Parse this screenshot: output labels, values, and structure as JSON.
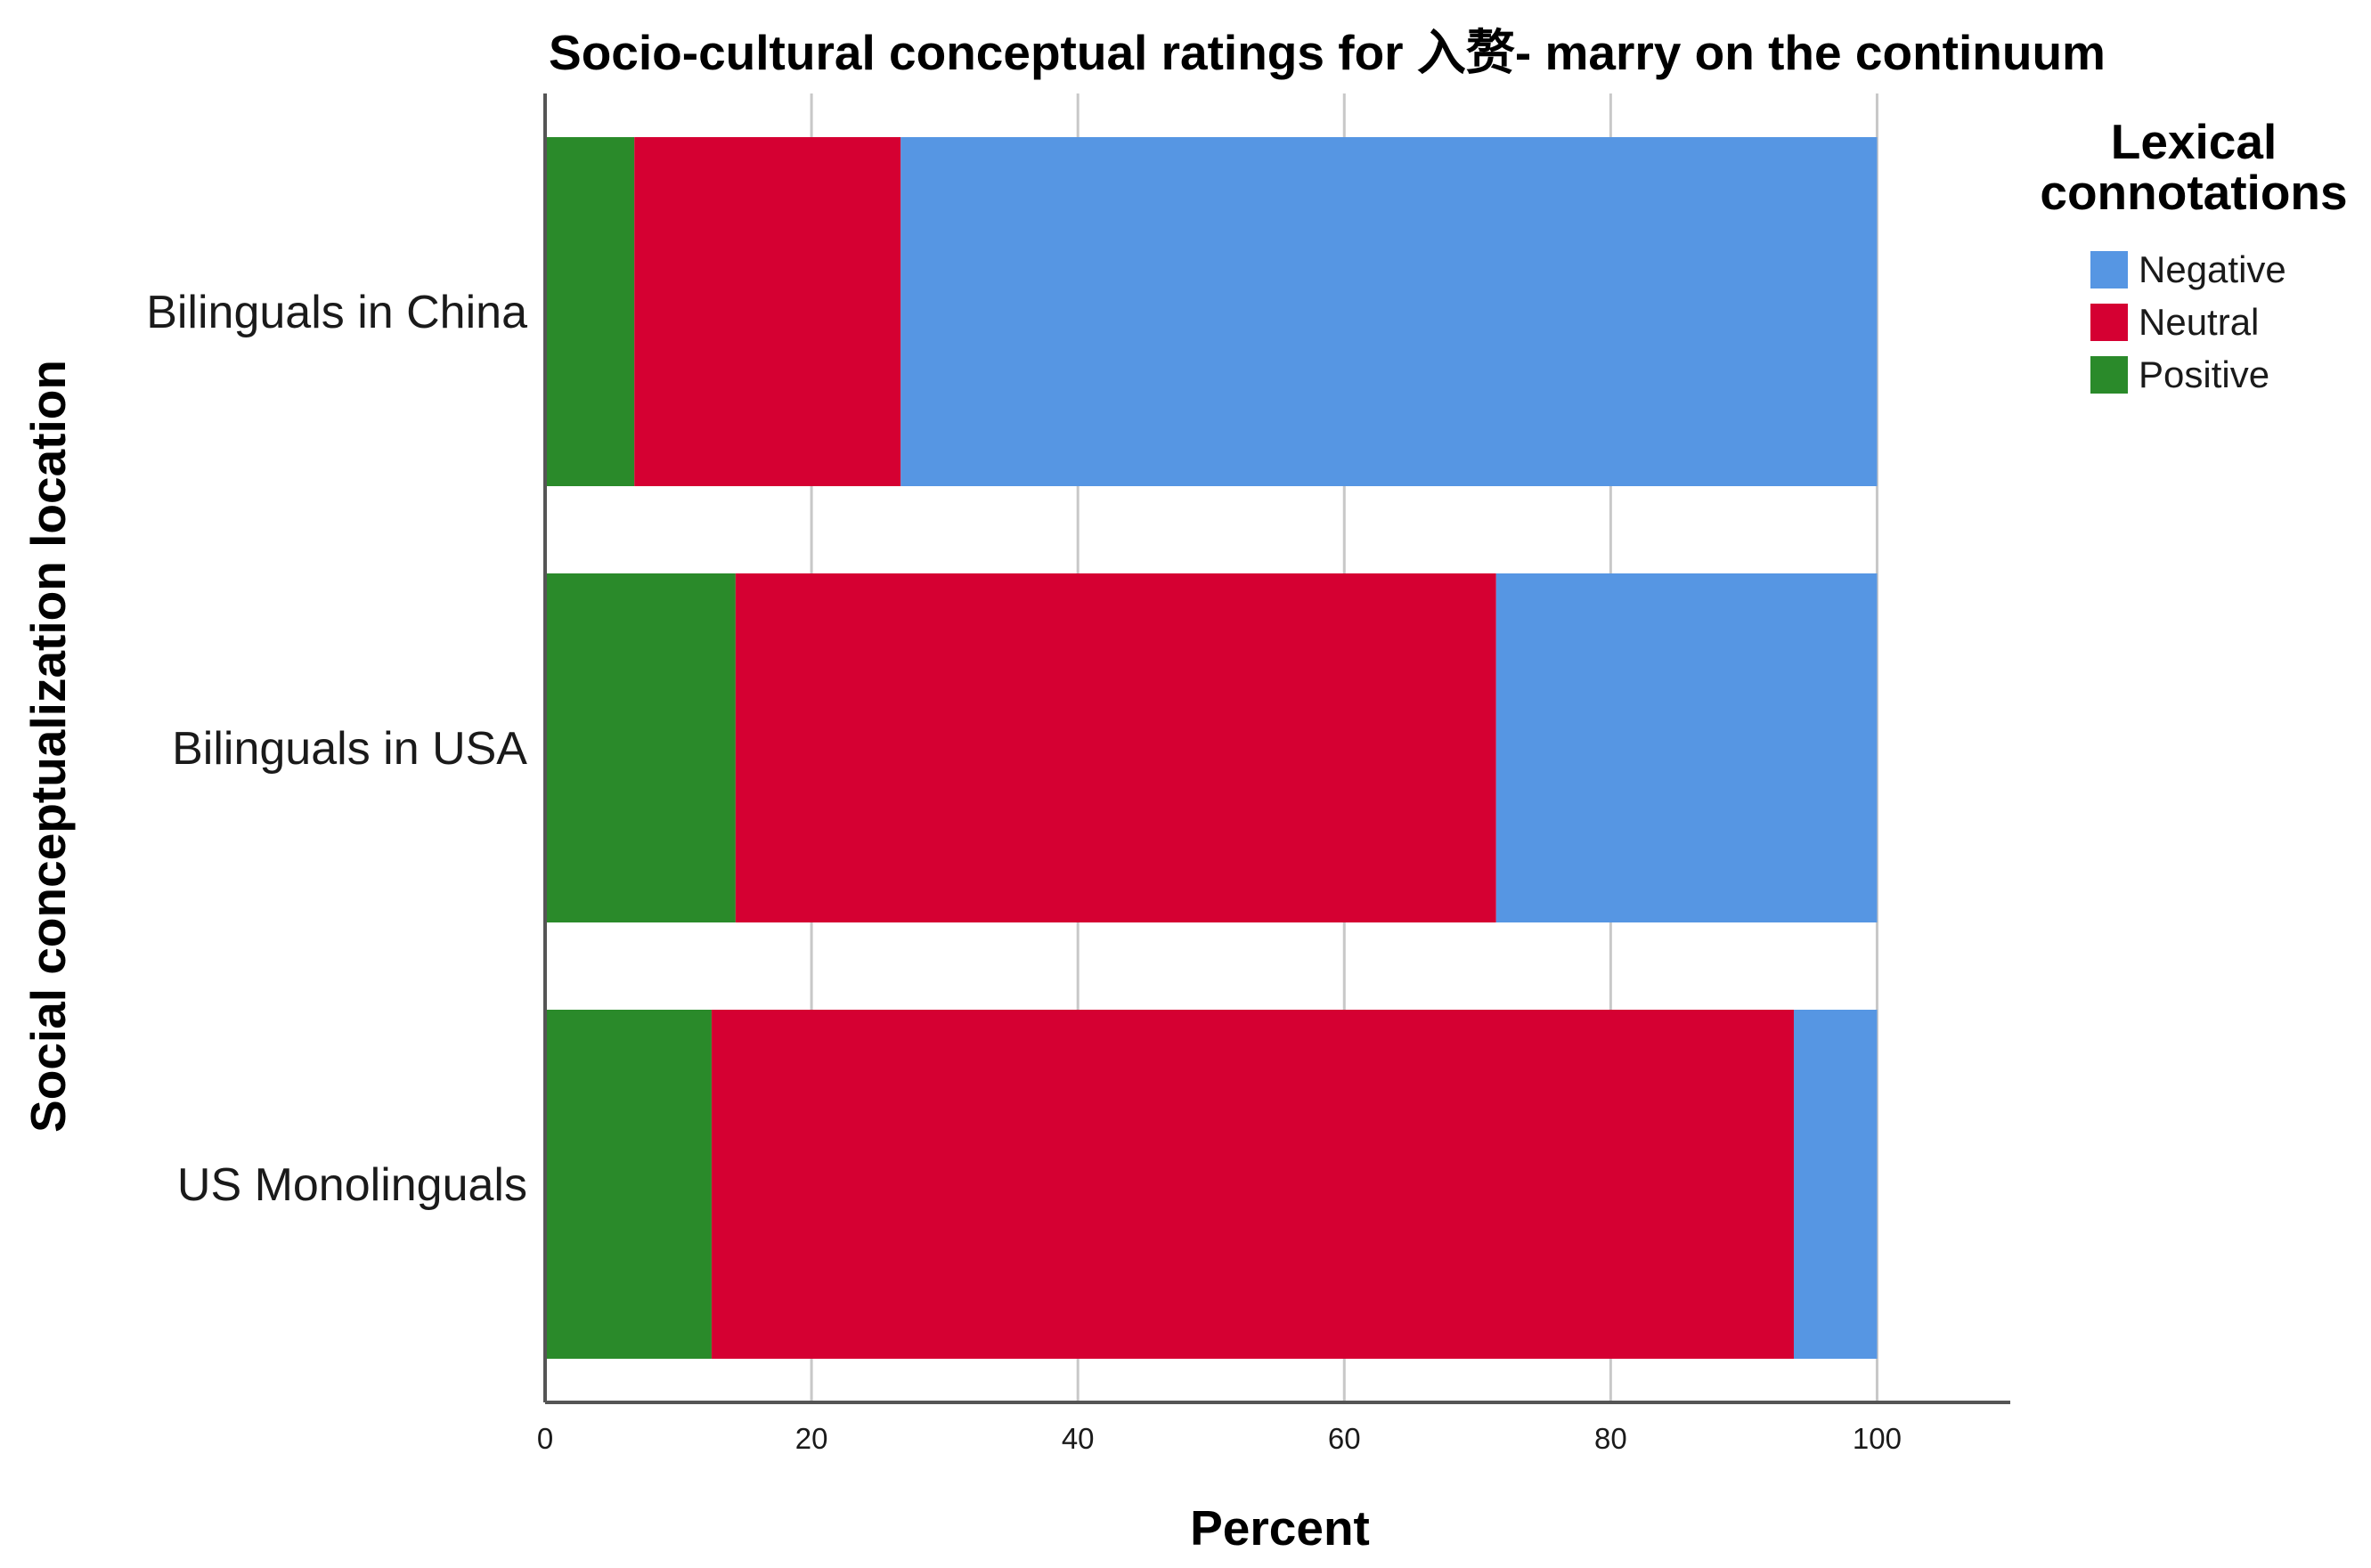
{
  "chart_data": {
    "type": "bar",
    "orientation": "horizontal",
    "stacked": true,
    "title": "Socio-cultural conceptual ratings for 入赘- marry on the continuum",
    "xlabel": "Percent",
    "ylabel": "Social conceptualization location",
    "xlim": [
      0,
      110
    ],
    "xticks": [
      "0",
      "20",
      "40",
      "60",
      "80",
      "100"
    ],
    "categories": [
      "Bilinguals in China",
      "Bilinguals in USA",
      "US Monolinguals"
    ],
    "series": [
      {
        "name": "Positive",
        "color": "#2a8a2a",
        "values": [
          6.7,
          14.3,
          12.5
        ]
      },
      {
        "name": "Neutral",
        "color": "#d50032",
        "values": [
          20.0,
          57.1,
          81.25
        ]
      },
      {
        "name": "Negative",
        "color": "#5696e3",
        "values": [
          73.3,
          28.6,
          6.25
        ]
      }
    ],
    "legend": {
      "title": [
        "Lexical",
        "connotations"
      ],
      "placement": "top-right",
      "order": [
        "Negative",
        "Neutral",
        "Positive"
      ]
    },
    "grid": "vertical"
  }
}
